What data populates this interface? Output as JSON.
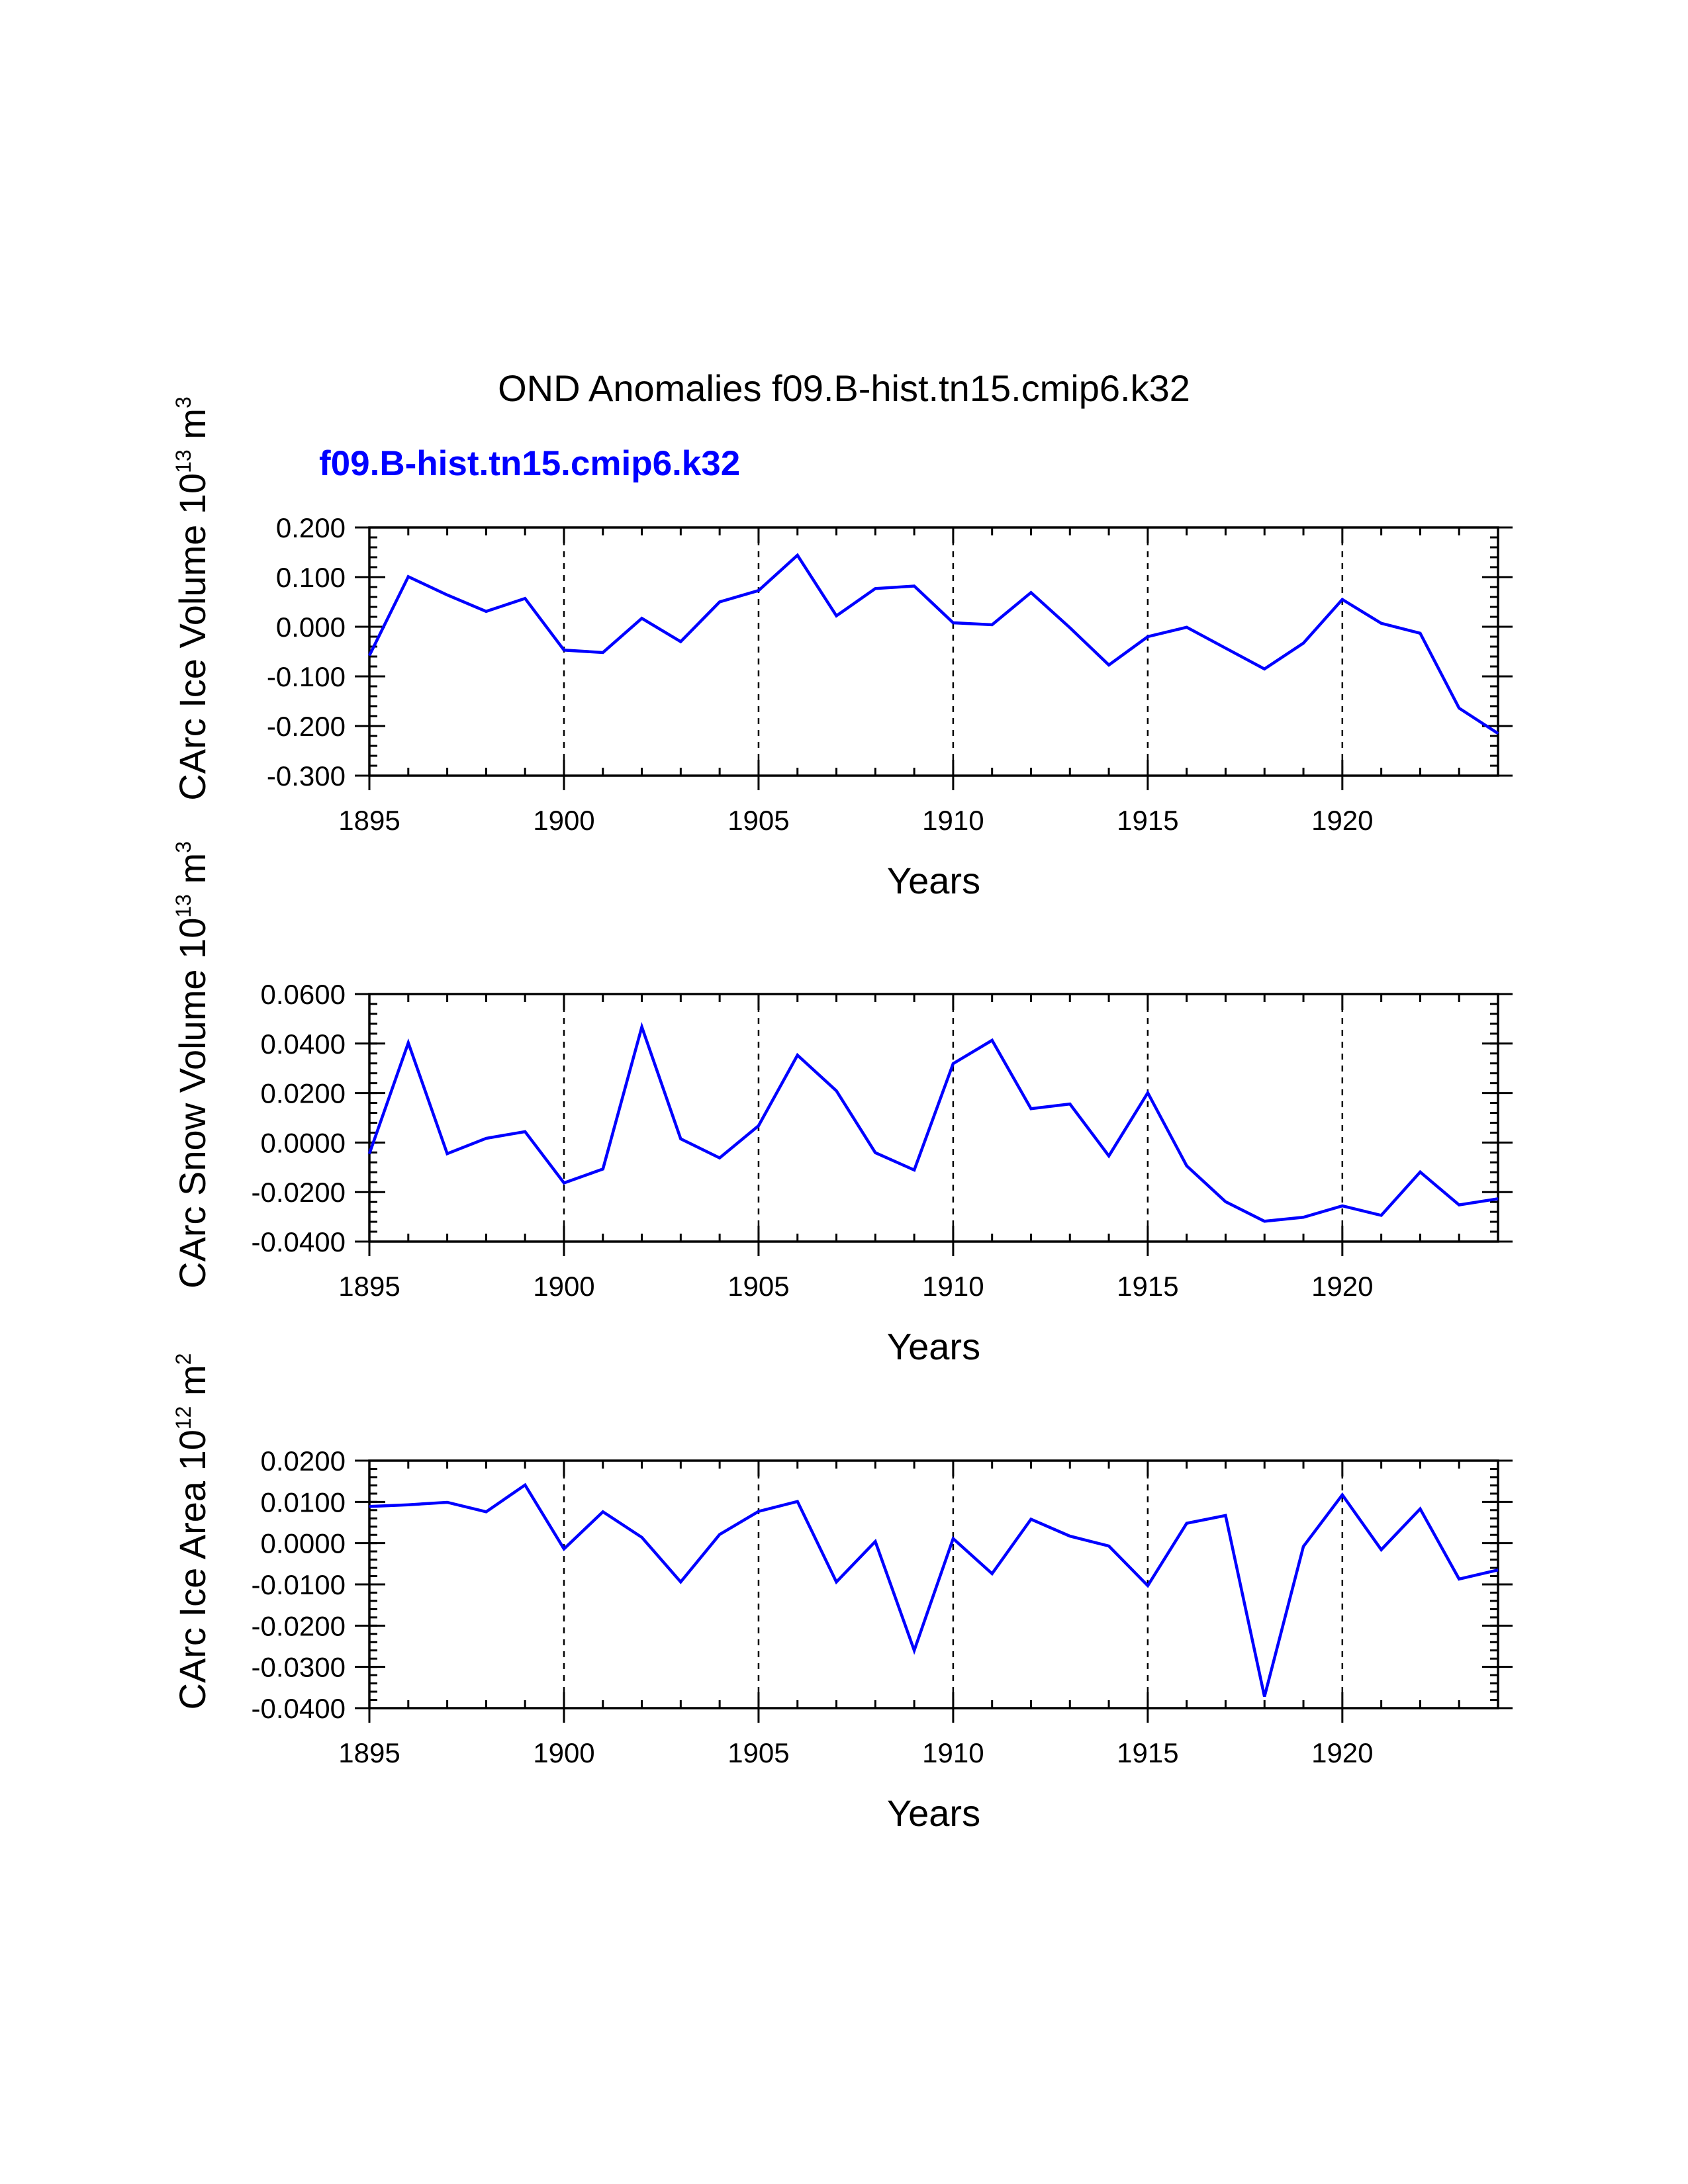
{
  "figure": {
    "title": "OND Anomalies f09.B-hist.tn15.cmip6.k32",
    "legend_label": "f09.B-hist.tn15.cmip6.k32",
    "line_color": "#0000ff"
  },
  "chart_data": [
    {
      "type": "line",
      "ylabel": {
        "base": "CArc Ice Volume 10",
        "exp": "13",
        "unit": " m",
        "unit_exp": "3"
      },
      "xlabel": "Years",
      "xlim": [
        1895,
        1924
      ],
      "ylim": [
        -0.3,
        0.2
      ],
      "x_ticks": [
        1895,
        1900,
        1905,
        1910,
        1915,
        1920
      ],
      "x_tick_labels": [
        "1895",
        "1900",
        "1905",
        "1910",
        "1915",
        "1920"
      ],
      "y_ticks": [
        0.2,
        0.1,
        0.0,
        -0.1,
        -0.2,
        -0.3
      ],
      "y_tick_labels": [
        "0.200",
        "0.100",
        "0.000",
        "-0.100",
        "-0.200",
        "-0.300"
      ],
      "y_minor_step": 0.02,
      "gridlines_x": [
        1900,
        1905,
        1910,
        1915,
        1920
      ],
      "series": [
        {
          "name": "f09.B-hist.tn15.cmip6.k32",
          "x": [
            1895,
            1896,
            1897,
            1898,
            1899,
            1900,
            1901,
            1902,
            1903,
            1904,
            1905,
            1906,
            1907,
            1908,
            1909,
            1910,
            1911,
            1912,
            1913,
            1914,
            1915,
            1916,
            1917,
            1918,
            1919,
            1920,
            1921,
            1922,
            1923,
            1924
          ],
          "values": [
            -0.058,
            0.101,
            0.064,
            0.031,
            0.057,
            -0.047,
            -0.052,
            0.017,
            -0.03,
            0.05,
            0.073,
            0.144,
            0.022,
            0.077,
            0.082,
            0.008,
            0.004,
            0.069,
            -0.002,
            -0.077,
            -0.02,
            -0.001,
            -0.043,
            -0.085,
            -0.033,
            0.055,
            0.007,
            -0.013,
            -0.164,
            -0.215
          ]
        }
      ]
    },
    {
      "type": "line",
      "ylabel": {
        "base": "CArc Snow Volume 10",
        "exp": "13",
        "unit": " m",
        "unit_exp": "3"
      },
      "xlabel": "Years",
      "xlim": [
        1895,
        1924
      ],
      "ylim": [
        -0.04,
        0.06
      ],
      "x_ticks": [
        1895,
        1900,
        1905,
        1910,
        1915,
        1920
      ],
      "x_tick_labels": [
        "1895",
        "1900",
        "1905",
        "1910",
        "1915",
        "1920"
      ],
      "y_ticks": [
        0.06,
        0.04,
        0.02,
        0.0,
        -0.02,
        -0.04
      ],
      "y_tick_labels": [
        "0.0600",
        "0.0400",
        "0.0200",
        "0.0000",
        "-0.0200",
        "-0.0400"
      ],
      "y_minor_step": 0.004,
      "gridlines_x": [
        1900,
        1905,
        1910,
        1915,
        1920
      ],
      "series": [
        {
          "name": "f09.B-hist.tn15.cmip6.k32",
          "x": [
            1895,
            1896,
            1897,
            1898,
            1899,
            1900,
            1901,
            1902,
            1903,
            1904,
            1905,
            1906,
            1907,
            1908,
            1909,
            1910,
            1911,
            1912,
            1913,
            1914,
            1915,
            1916,
            1917,
            1918,
            1919,
            1920,
            1921,
            1922,
            1923,
            1924
          ],
          "values": [
            -0.0045,
            0.0403,
            -0.0045,
            0.0017,
            0.0044,
            -0.0163,
            -0.0107,
            0.0467,
            0.0015,
            -0.0062,
            0.0068,
            0.0353,
            0.0209,
            -0.0041,
            -0.0111,
            0.0319,
            0.0413,
            0.0137,
            0.0156,
            -0.0054,
            0.0201,
            -0.0094,
            -0.0239,
            -0.0318,
            -0.0302,
            -0.0256,
            -0.0294,
            -0.0119,
            -0.0252,
            -0.0227
          ]
        }
      ]
    },
    {
      "type": "line",
      "ylabel": {
        "base": "CArc Ice Area 10",
        "exp": "12",
        "unit": " m",
        "unit_exp": "2"
      },
      "xlabel": "Years",
      "xlim": [
        1895,
        1924
      ],
      "ylim": [
        -0.04,
        0.02
      ],
      "x_ticks": [
        1895,
        1900,
        1905,
        1910,
        1915,
        1920
      ],
      "x_tick_labels": [
        "1895",
        "1900",
        "1905",
        "1910",
        "1915",
        "1920"
      ],
      "y_ticks": [
        0.02,
        0.01,
        0.0,
        -0.01,
        -0.02,
        -0.03,
        -0.04
      ],
      "y_tick_labels": [
        "0.0200",
        "0.0100",
        "0.0000",
        "-0.0100",
        "-0.0200",
        "-0.0300",
        "-0.0400"
      ],
      "y_minor_step": 0.002,
      "gridlines_x": [
        1900,
        1905,
        1910,
        1915,
        1920
      ],
      "series": [
        {
          "name": "f09.B-hist.tn15.cmip6.k32",
          "x": [
            1895,
            1896,
            1897,
            1898,
            1899,
            1900,
            1901,
            1902,
            1903,
            1904,
            1905,
            1906,
            1907,
            1908,
            1909,
            1910,
            1911,
            1912,
            1913,
            1914,
            1915,
            1916,
            1917,
            1918,
            1919,
            1920,
            1921,
            1922,
            1923,
            1924
          ],
          "values": [
            0.0089,
            0.0093,
            0.0099,
            0.0076,
            0.0141,
            -0.0014,
            0.0076,
            0.0014,
            -0.0094,
            0.0021,
            0.0077,
            0.0101,
            -0.0094,
            0.0004,
            -0.026,
            0.0011,
            -0.0074,
            0.0058,
            0.0017,
            -0.0007,
            -0.0103,
            0.0048,
            0.0067,
            -0.0372,
            -0.0008,
            0.0117,
            -0.0016,
            0.0083,
            -0.0087,
            -0.0065
          ]
        }
      ]
    }
  ]
}
